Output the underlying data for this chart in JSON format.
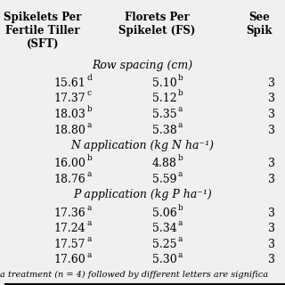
{
  "headers": [
    "Spikelets Per\nFertile Tiller\n(SFT)",
    "Florets Per\nSpikelet (FS)",
    "See\nSpik"
  ],
  "sections": [
    {
      "section_header": "Row spacing (cm)",
      "rows": [
        [
          "15.61",
          "d",
          "5.10",
          "b",
          "3"
        ],
        [
          "17.37",
          "c",
          "5.12",
          "b",
          "3"
        ],
        [
          "18.03",
          "b",
          "5.35",
          "a",
          "3"
        ],
        [
          "18.80",
          "a",
          "5.38",
          "a",
          "3"
        ]
      ]
    },
    {
      "section_header": "N application (kg N ha⁻¹)",
      "rows": [
        [
          "16.00",
          "b",
          "4.88",
          "b",
          "3"
        ],
        [
          "18.76",
          "a",
          "5.59",
          "a",
          "3"
        ]
      ]
    },
    {
      "section_header": "P application (kg P ha⁻¹)",
      "rows": [
        [
          "17.36",
          "a",
          "5.06",
          "b",
          "3"
        ],
        [
          "17.24",
          "a",
          "5.34",
          "a",
          "3"
        ],
        [
          "17.57",
          "a",
          "5.25",
          "a",
          "3"
        ],
        [
          "17.60",
          "a",
          "5.30",
          "a",
          "3"
        ]
      ]
    }
  ],
  "footer": "a treatment (n = 4) followed by different letters are significa",
  "bg_color": "#f0f0f0",
  "header_fontsize": 8.5,
  "data_fontsize": 9,
  "section_fontsize": 9,
  "footer_fontsize": 7
}
